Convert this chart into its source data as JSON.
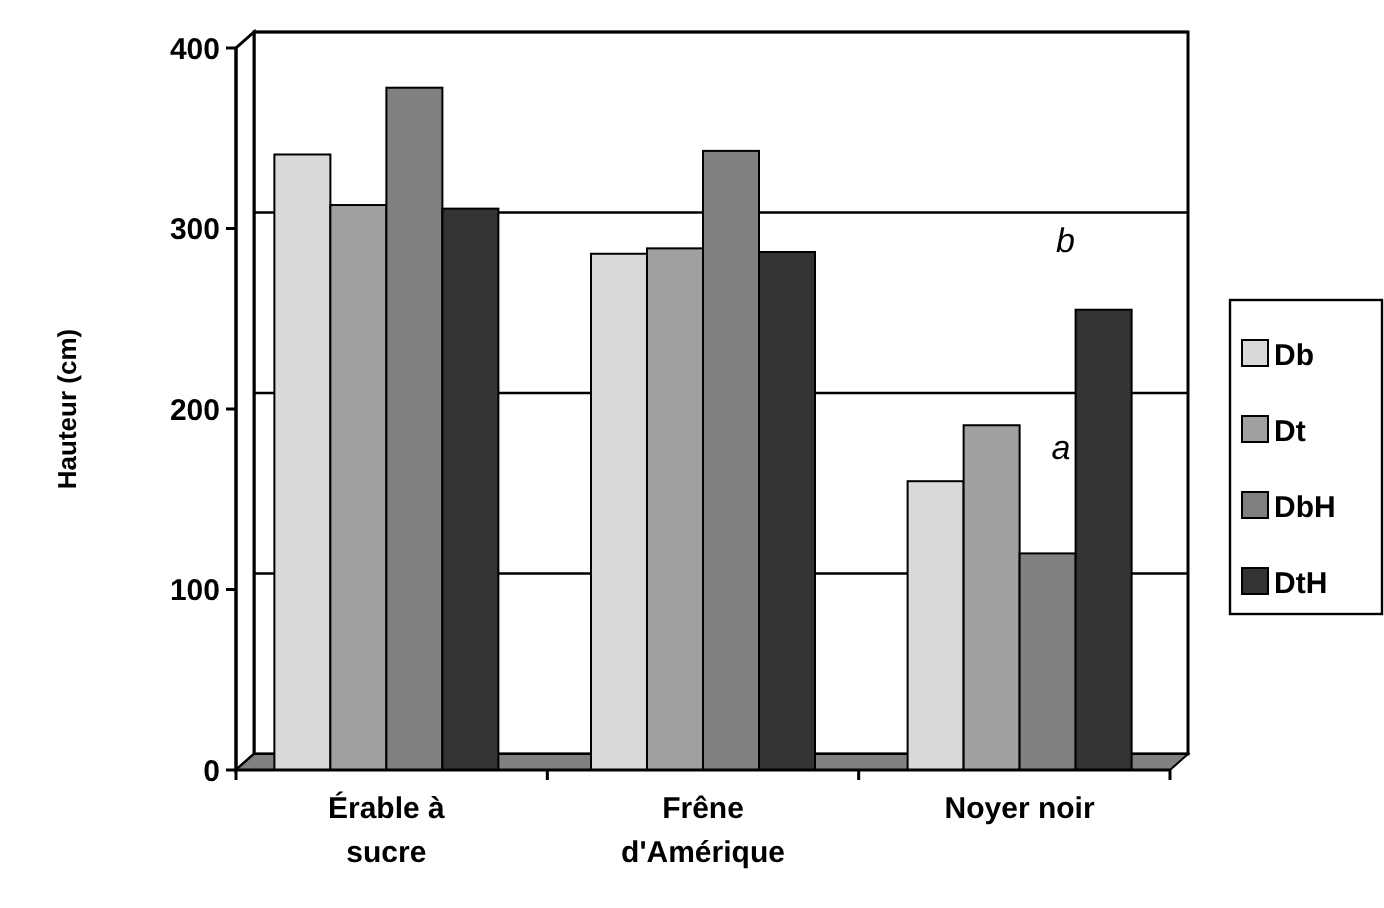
{
  "chart_data": {
    "type": "bar",
    "ylabel": "Hauteur (cm)",
    "categories": [
      "Érable à sucre",
      "Frêne d'Amérique",
      "Noyer noir"
    ],
    "series": [
      {
        "name": "Db",
        "color": "#d9d9d9",
        "values": [
          341,
          286,
          160
        ]
      },
      {
        "name": "Dt",
        "color": "#a0a0a0",
        "values": [
          313,
          289,
          191
        ]
      },
      {
        "name": "DbH",
        "color": "#808080",
        "values": [
          378,
          343,
          120
        ]
      },
      {
        "name": "DtH",
        "color": "#333333",
        "values": [
          311,
          287,
          255
        ]
      }
    ],
    "ylim": [
      0,
      400
    ],
    "yticks": [
      0,
      100,
      200,
      300,
      400
    ],
    "grid": "y",
    "legend": "right",
    "annotations": [
      {
        "text": "a",
        "x": "Noyer noir",
        "y": 179
      },
      "b"
    ]
  }
}
